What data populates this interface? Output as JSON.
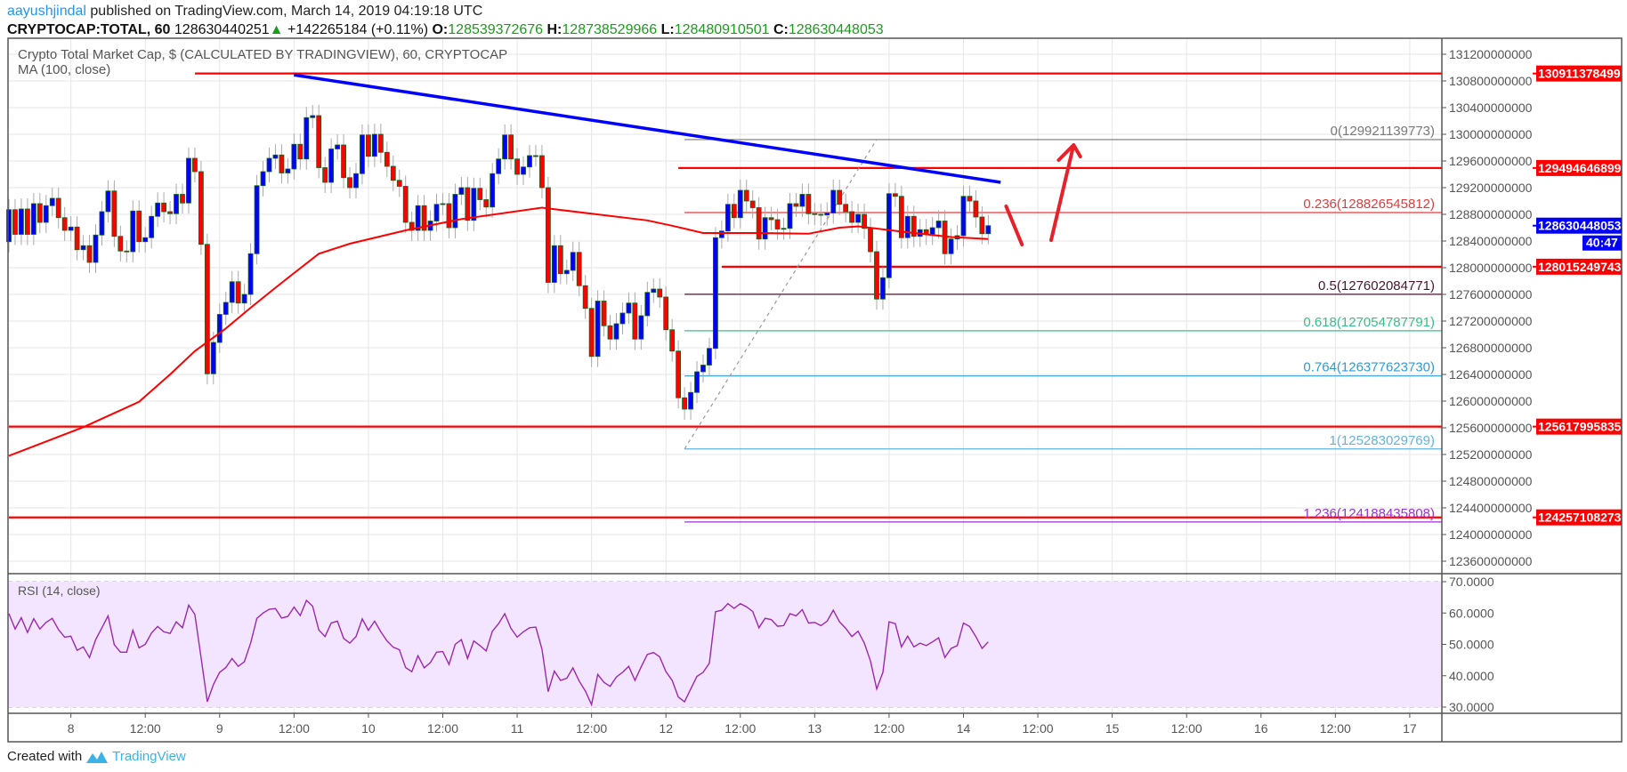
{
  "header": {
    "author": "aayushjindal",
    "published": " published on TradingView.com, March 14, 2019 04:19:18 UTC"
  },
  "ticker": {
    "symbol": "CRYPTOCAP:TOTAL, 60",
    "last": "128630440251",
    "arrow": "▲",
    "change": "+142265184 (+0.11%)",
    "o_label": "O:",
    "o": "128539372676",
    "h_label": "H:",
    "h": "128738529966",
    "l_label": "L:",
    "l": "128480910501",
    "c_label": "C:",
    "c": "128630448053"
  },
  "chart": {
    "title": "Crypto Total Market Cap, $ (CALCULATED BY TRADINGVIEW), 60, CRYPTOCAP",
    "ma_label": "MA (100, close)",
    "rsi_label": "RSI (14, close)",
    "last_price_badge": "128630448053",
    "countdown": "40:47"
  },
  "footer": {
    "created_with": "Created with",
    "brand": "TradingView"
  },
  "colors": {
    "up_candle": "#0000ff",
    "down_candle": "#ff0000",
    "candle_border": "#1b5e20",
    "ma": "#ff0000",
    "trendline": "#0000ff",
    "level": "#ff0000",
    "rsi_line": "#9c27b0",
    "rsi_band": "#f3e5ff",
    "last_price": "#0000ff"
  },
  "chart_data": {
    "type": "candlestick",
    "interval": "60",
    "start": "2019-03-07 14:00",
    "first_open": 128390000000.0,
    "closes": [
      128870000000.0,
      128500000000.0,
      128880000000.0,
      128500000000.0,
      128960000000.0,
      128680000000.0,
      128930000000.0,
      129040000000.0,
      128750000000.0,
      128560000000.0,
      128610000000.0,
      128270000000.0,
      128330000000.0,
      128080000000.0,
      128490000000.0,
      128840000000.0,
      129150000000.0,
      128470000000.0,
      128250000000.0,
      128240000000.0,
      128850000000.0,
      128390000000.0,
      128450000000.0,
      128770000000.0,
      128970000000.0,
      128840000000.0,
      128810000000.0,
      129100000000.0,
      128970000000.0,
      129640000000.0,
      129440000000.0,
      128350000000.0,
      126410000000.0,
      126880000000.0,
      127300000000.0,
      127480000000.0,
      127790000000.0,
      127470000000.0,
      127600000000.0,
      128210000000.0,
      129230000000.0,
      129440000000.0,
      129640000000.0,
      129690000000.0,
      129420000000.0,
      129480000000.0,
      129850000000.0,
      129630000000.0,
      130250000000.0,
      130280000000.0,
      129500000000.0,
      129280000000.0,
      129780000000.0,
      129840000000.0,
      129350000000.0,
      129200000000.0,
      129410000000.0,
      129990000000.0,
      129670000000.0,
      130000000000.0,
      129730000000.0,
      129520000000.0,
      129310000000.0,
      129220000000.0,
      128680000000.0,
      128560000000.0,
      128930000000.0,
      128560000000.0,
      128700000000.0,
      128950000000.0,
      128960000000.0,
      128600000000.0,
      129100000000.0,
      129200000000.0,
      128710000000.0,
      129190000000.0,
      129020000000.0,
      128910000000.0,
      129410000000.0,
      129630000000.0,
      129990000000.0,
      129630000000.0,
      129400000000.0,
      129510000000.0,
      129680000000.0,
      129680000000.0,
      129200000000.0,
      127780000000.0,
      128330000000.0,
      127910000000.0,
      127960000000.0,
      128230000000.0,
      127730000000.0,
      127390000000.0,
      126670000000.0,
      127500000000.0,
      127130000000.0,
      126930000000.0,
      127160000000.0,
      127320000000.0,
      127470000000.0,
      126930000000.0,
      127280000000.0,
      127630000000.0,
      127680000000.0,
      127560000000.0,
      127070000000.0,
      126750000000.0,
      126050000000.0,
      125880000000.0,
      126130000000.0,
      126440000000.0,
      126540000000.0,
      126790000000.0,
      128450000000.0,
      128550000000.0,
      128950000000.0,
      128750000000.0,
      129160000000.0,
      129000000000.0,
      128900000000.0,
      128430000000.0,
      128750000000.0,
      128720000000.0,
      128580000000.0,
      128590000000.0,
      128960000000.0,
      128920000000.0,
      129100000000.0,
      128810000000.0,
      128800000000.0,
      128790000000.0,
      128820000000.0,
      129160000000.0,
      128950000000.0,
      128840000000.0,
      128680000000.0,
      128800000000.0,
      128590000000.0,
      128240000000.0,
      127530000000.0,
      127850000000.0,
      129110000000.0,
      129070000000.0,
      128450000000.0,
      128770000000.0,
      128470000000.0,
      128570000000.0,
      128500000000.0,
      128600000000.0,
      128700000000.0,
      128210000000.0,
      128430000000.0,
      128480000000.0,
      129070000000.0,
      129000000000.0,
      128760000000.0,
      128510000000.0,
      128630000000.0
    ],
    "ma100": [
      [
        "2019-03-07 14:00",
        125180000000.0
      ],
      [
        "2019-03-08 02:00",
        125610000000.0
      ],
      [
        "2019-03-08 11:00",
        125990000000.0
      ],
      [
        "2019-03-08 16:00",
        126400000000.0
      ],
      [
        "2019-03-08 20:00",
        126750000000.0
      ],
      [
        "2019-03-09 01:00",
        127090000000.0
      ],
      [
        "2019-03-09 05:00",
        127400000000.0
      ],
      [
        "2019-03-09 09:00",
        127700000000.0
      ],
      [
        "2019-03-09 12:00",
        127920000000.0
      ],
      [
        "2019-03-09 16:00",
        128210000000.0
      ],
      [
        "2019-03-09 21:00",
        128360000000.0
      ],
      [
        "2019-03-10 06:00",
        128560000000.0
      ],
      [
        "2019-03-10 15:00",
        128730000000.0
      ],
      [
        "2019-03-11 04:00",
        128900000000.0
      ],
      [
        "2019-03-11 12:00",
        128810000000.0
      ],
      [
        "2019-03-11 21:00",
        128710000000.0
      ],
      [
        "2019-03-12 01:00",
        128630000000.0
      ],
      [
        "2019-03-12 06:00",
        128520000000.0
      ],
      [
        "2019-03-12 15:00",
        128520000000.0
      ],
      [
        "2019-03-12 23:00",
        128510000000.0
      ],
      [
        "2019-03-13 04:00",
        128600000000.0
      ],
      [
        "2019-03-13 07:00",
        128620000000.0
      ],
      [
        "2019-03-13 16:00",
        128520000000.0
      ],
      [
        "2019-03-13 22:00",
        128460000000.0
      ],
      [
        "2019-03-14 04:00",
        128430000000.0
      ]
    ],
    "y_axis": {
      "range": [
        123300000000.0,
        131450000000.0
      ],
      "ticks": [
        "131200000000",
        "130800000000",
        "130400000000",
        "130000000000",
        "129600000000",
        "129200000000",
        "128800000000",
        "128400000000",
        "128000000000",
        "127600000000",
        "127200000000",
        "126800000000",
        "126400000000",
        "126000000000",
        "125600000000",
        "125200000000",
        "124800000000",
        "124400000000",
        "124000000000",
        "123600000000"
      ]
    },
    "x_axis": {
      "ticks": [
        {
          "time": "2019-03-08 00:00",
          "label": "8"
        },
        {
          "time": "2019-03-08 12:00",
          "label": "12:00"
        },
        {
          "time": "2019-03-09 00:00",
          "label": "9"
        },
        {
          "time": "2019-03-09 12:00",
          "label": "12:00"
        },
        {
          "time": "2019-03-10 00:00",
          "label": "10"
        },
        {
          "time": "2019-03-10 12:00",
          "label": "12:00"
        },
        {
          "time": "2019-03-11 00:00",
          "label": "11"
        },
        {
          "time": "2019-03-11 12:00",
          "label": "12:00"
        },
        {
          "time": "2019-03-12 00:00",
          "label": "12"
        },
        {
          "time": "2019-03-12 12:00",
          "label": "12:00"
        },
        {
          "time": "2019-03-13 00:00",
          "label": "13"
        },
        {
          "time": "2019-03-13 12:00",
          "label": "12:00"
        },
        {
          "time": "2019-03-14 00:00",
          "label": "14"
        },
        {
          "time": "2019-03-14 12:00",
          "label": "12:00"
        },
        {
          "time": "2019-03-15 00:00",
          "label": "15"
        },
        {
          "time": "2019-03-15 12:00",
          "label": "12:00"
        },
        {
          "time": "2019-03-16 00:00",
          "label": "16"
        },
        {
          "time": "2019-03-16 12:00",
          "label": "12:00"
        },
        {
          "time": "2019-03-17 00:00",
          "label": "17"
        }
      ]
    },
    "horizontal_levels": [
      {
        "price": 130911378499,
        "label": "130911378499",
        "from": "2019-03-08 20:00"
      },
      {
        "price": 129494646899,
        "label": "129494646899",
        "from": "2019-03-12 02:00"
      },
      {
        "price": 128015249743,
        "label": "128015249743",
        "from": "2019-03-12 09:00"
      },
      {
        "price": 125617995835,
        "label": "125617995835",
        "from": "2019-03-07 14:00"
      },
      {
        "price": 124257108273,
        "label": "124257108273",
        "from": "2019-03-07 14:00"
      }
    ],
    "trendline": {
      "from": [
        "2019-03-09 12:00",
        130890000000.0
      ],
      "to": [
        "2019-03-14 06:00",
        129280000000.0
      ]
    },
    "fibonacci": {
      "from": [
        "2019-03-12 03:00",
        125283029769
      ],
      "to": [
        "2019-03-13 10:00",
        129921139773
      ],
      "levels": [
        {
          "ratio": "0",
          "price": 129921139773,
          "label": "0(129921139773)",
          "color": "#787878"
        },
        {
          "ratio": "0.236",
          "price": 128826545812,
          "label": "0.236(128826545812)",
          "color": "#e03c3c"
        },
        {
          "ratio": "0.5",
          "price": 127602084771,
          "label": "0.5(127602084771)",
          "color": "#4a1530"
        },
        {
          "ratio": "0.618",
          "price": 127054787791,
          "label": "0.618(127054787791)",
          "color": "#35c08a"
        },
        {
          "ratio": "0.764",
          "price": 126377623730,
          "label": "0.764(126377623730)",
          "color": "#2f9bd6"
        },
        {
          "ratio": "1",
          "price": 125283029769,
          "label": "1(125283029769)",
          "color": "#62b3dd"
        },
        {
          "ratio": "1.236",
          "price": 124188435808,
          "label": "1.236(124188435808)",
          "color": "#9b30d0"
        }
      ]
    },
    "rsi": {
      "period": 14,
      "range": [
        26,
        72
      ],
      "band": [
        30,
        70
      ],
      "ticks": [
        "70.0000",
        "60.0000",
        "50.0000",
        "40.0000",
        "30.0000"
      ],
      "values": [
        59.8,
        54.9,
        58.5,
        53.8,
        58.2,
        54.9,
        57,
        58.3,
        54.7,
        52.3,
        52.6,
        48.1,
        49.2,
        45.8,
        51.5,
        55.3,
        59.1,
        49.9,
        47.5,
        47.5,
        54.5,
        48.9,
        50,
        53.6,
        55.7,
        54,
        53.5,
        57.2,
        55.3,
        62.5,
        59.6,
        45.8,
        31.7,
        37.2,
        41.1,
        42.6,
        45.5,
        43,
        44.5,
        50.4,
        58.3,
        60,
        61.2,
        61.4,
        58.4,
        58.9,
        61.9,
        59.2,
        64,
        62.2,
        54.6,
        52.5,
        56.8,
        57.4,
        51.9,
        50.4,
        52.5,
        58.1,
        54.5,
        57.4,
        54,
        51.1,
        49.1,
        48.3,
        42.6,
        41.3,
        46.4,
        42.5,
        44.2,
        47.5,
        47.7,
        43.6,
        50,
        51.5,
        45.5,
        51.1,
        49.6,
        47.9,
        54.2,
        56.6,
        59.8,
        55.1,
        52.3,
        54,
        55.3,
        55.5,
        48.5,
        34.9,
        41.5,
        38.5,
        39.2,
        42.5,
        38.3,
        35.1,
        30.8,
        40.4,
        37.9,
        36.6,
        39.6,
        41.1,
        43,
        38.5,
        42.8,
        46.8,
        47.4,
        46,
        41.3,
        38.5,
        33.2,
        31.7,
        35.8,
        39.8,
        41.1,
        44,
        60.4,
        60.9,
        63,
        61.5,
        63,
        62,
        60.5,
        55.3,
        58.3,
        57.9,
        55.8,
        56,
        59.8,
        59.1,
        61.1,
        56.8,
        57,
        56,
        57.4,
        60.9,
        57.2,
        55.1,
        52.5,
        54.2,
        50.4,
        44.7,
        35.8,
        41.1,
        57.2,
        56.6,
        49.2,
        52.6,
        49.2,
        50.4,
        49.6,
        50.8,
        52.1,
        45.8,
        48.7,
        49.6,
        56.8,
        55.7,
        52.5,
        48.7,
        50.8
      ]
    }
  }
}
